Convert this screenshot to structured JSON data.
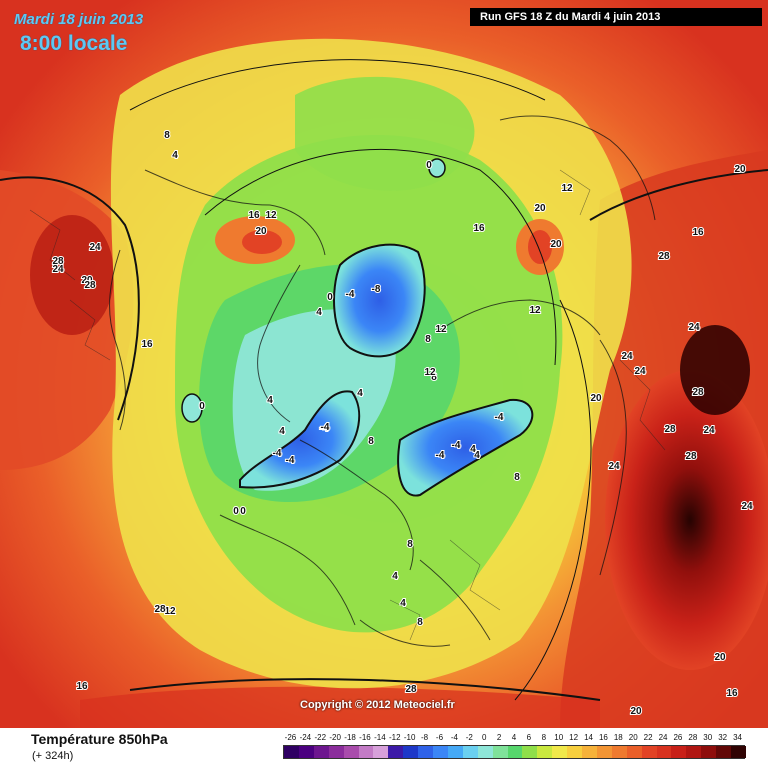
{
  "header": {
    "date": "Mardi 18 juin 2013",
    "time": "8:00 locale",
    "run": "Run GFS 18 Z du Mardi 4 juin 2013"
  },
  "footer": {
    "copyright": "Copyright © 2012 Meteociel.fr",
    "variable": "Température 850hPa",
    "lead": "(+ 324h)"
  },
  "scale": {
    "values": [
      "-26",
      "-24",
      "-22",
      "-20",
      "-18",
      "-16",
      "-14",
      "-12",
      "-10",
      "-8",
      "-6",
      "-4",
      "-2",
      "0",
      "2",
      "4",
      "6",
      "8",
      "10",
      "12",
      "14",
      "16",
      "18",
      "20",
      "22",
      "24",
      "26",
      "28",
      "30",
      "32",
      "34"
    ],
    "colors": [
      "#2f0063",
      "#4b0080",
      "#6d168f",
      "#8b2d9c",
      "#a94cac",
      "#c37bc6",
      "#d7a0da",
      "#3c1aa8",
      "#1e38c8",
      "#2f62e8",
      "#3b86f6",
      "#45a9f6",
      "#6ad0f0",
      "#8ee6d8",
      "#7fe29a",
      "#56d66c",
      "#8fdf4a",
      "#c9e83f",
      "#f0e84a",
      "#f7cf3e",
      "#f6b23a",
      "#f39534",
      "#ef7a2f",
      "#ea5f29",
      "#e24325",
      "#d8321f",
      "#c82018",
      "#b01612",
      "#8e0d0b",
      "#620706",
      "#300303"
    ]
  },
  "map_labels": [
    "0",
    "0",
    "0",
    "0",
    "0",
    "-4",
    "-8",
    "-4",
    "-4",
    "-4",
    "-4",
    "-4",
    "-4",
    "-4",
    "4",
    "4",
    "4",
    "4",
    "4",
    "4",
    "4",
    "4",
    "4",
    "8",
    "8",
    "8",
    "8",
    "8",
    "8",
    "8",
    "12",
    "12",
    "12",
    "12",
    "12",
    "12",
    "16",
    "16",
    "16",
    "16",
    "16",
    "16",
    "20",
    "20",
    "20",
    "20",
    "20",
    "20",
    "20",
    "20",
    "24",
    "24",
    "24",
    "24",
    "24",
    "24",
    "24",
    "24",
    "28",
    "28",
    "28",
    "28",
    "28",
    "28",
    "28",
    "28"
  ]
}
